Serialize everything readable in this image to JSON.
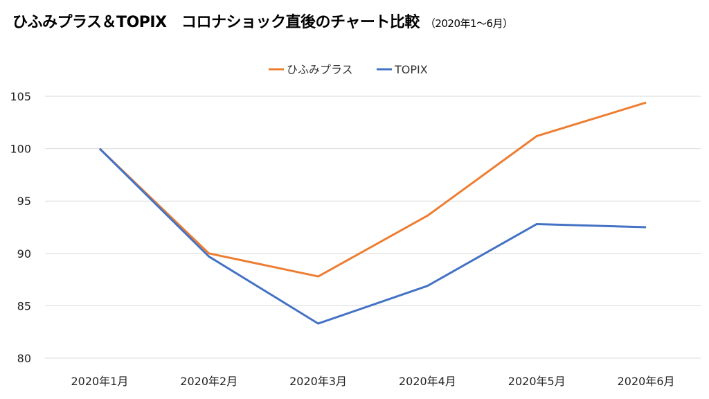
{
  "chart_data": {
    "type": "line",
    "title": "ひふみプラス＆TOPIX　コロナショック直後のチャート比較",
    "subtitle": "（2020年1～6月）",
    "categories": [
      "2020年1月",
      "2020年2月",
      "2020年3月",
      "2020年4月",
      "2020年5月",
      "2020年6月"
    ],
    "series": [
      {
        "name": "ひふみプラス",
        "color": "#ED7D31",
        "values": [
          100,
          90.0,
          87.8,
          93.6,
          101.2,
          104.4
        ]
      },
      {
        "name": "TOPIX",
        "color": "#4472C4",
        "values": [
          100,
          89.7,
          83.3,
          86.9,
          92.8,
          92.5
        ]
      }
    ],
    "yticks": [
      "80",
      "85",
      "90",
      "95",
      "100",
      "105"
    ],
    "ylim": [
      80,
      105
    ],
    "grid": true,
    "legend": "top-center"
  }
}
